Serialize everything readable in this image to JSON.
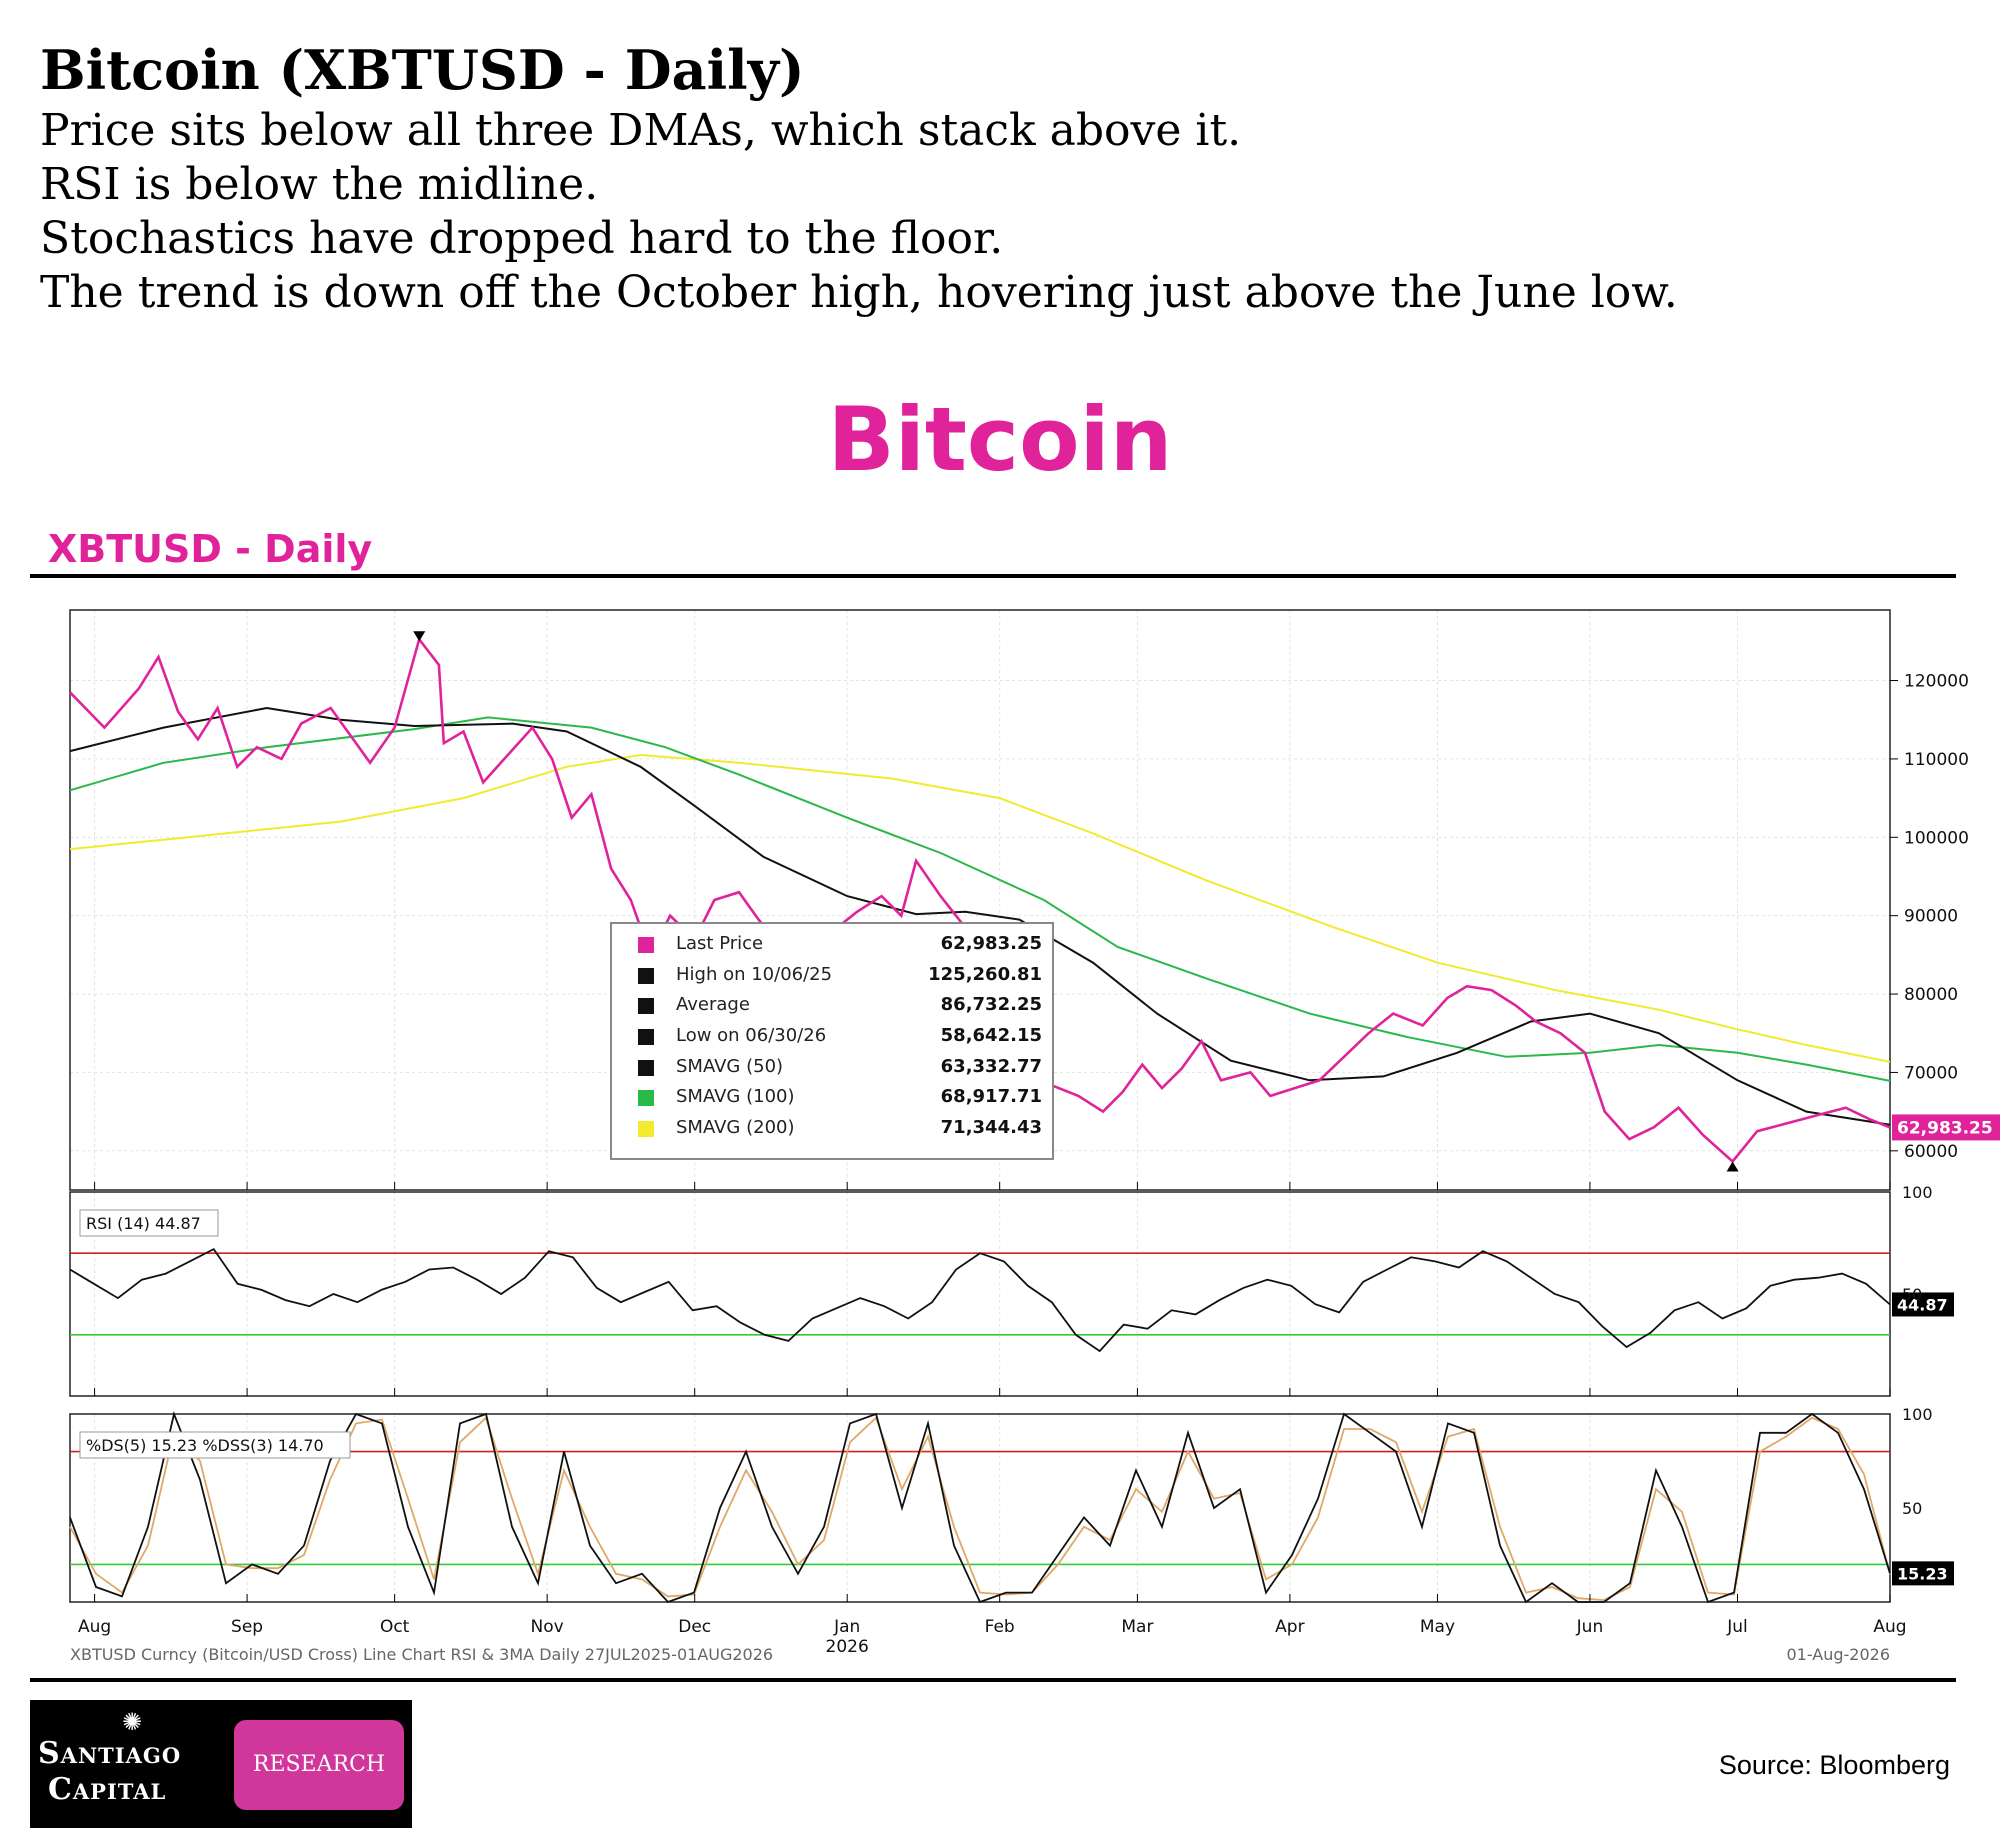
{
  "header": {
    "headline": "Bitcoin (XBTUSD - Daily)",
    "summary": [
      "Price sits below all three DMAs, which stack above it.",
      "RSI is below the midline.",
      "Stochastics have dropped hard to the floor.",
      "The trend is down off the October high, hovering just above the June low."
    ]
  },
  "big_title": "Bitcoin",
  "subtitle": "XBTUSD - Daily",
  "legend": [
    {
      "label": "Last Price",
      "value": "62,983.25",
      "color": "#e0239b"
    },
    {
      "label": "High on 10/06/25",
      "value": "125,260.81",
      "color": "#111111"
    },
    {
      "label": "Average",
      "value": "86,732.25",
      "color": "#111111"
    },
    {
      "label": "Low on 06/30/26",
      "value": "58,642.15",
      "color": "#111111"
    },
    {
      "label": "SMAVG (50)",
      "value": "63,332.77",
      "color": "#111111"
    },
    {
      "label": "SMAVG (100)",
      "value": "68,917.71",
      "color": "#2bb84a"
    },
    {
      "label": "SMAVG (200)",
      "value": "71,344.43",
      "color": "#f2ea2e"
    }
  ],
  "footer": {
    "chart_caption": "XBTUSD Curncy (Bitcoin/USD Cross) Line Chart RSI & 3MA Daily  27JUL2025-01AUG2026",
    "date_stamp": "01-Aug-2026",
    "logo_line1": "Santiago",
    "logo_line2": "Capital",
    "logo_badge": "RESEARCH",
    "source": "Source: Bloomberg"
  },
  "colors": {
    "accent": "#e0239b",
    "sma50": "#111111",
    "sma100": "#2bb84a",
    "sma200": "#f2ea2e",
    "overbought": "#cc2222",
    "oversold": "#33cc33",
    "stoch_signal": "#e0a868"
  },
  "chart_data": [
    {
      "type": "line",
      "title": "XBTUSD - Daily",
      "x_ticks": [
        "Aug",
        "Sep",
        "Oct",
        "Nov",
        "Dec",
        "Jan",
        "Feb",
        "Mar",
        "Apr",
        "May",
        "Jun",
        "Jul",
        "Aug"
      ],
      "x_tick_sub": {
        "Jan": "2026"
      },
      "x_range": [
        "2025-07-27",
        "2026-08-01"
      ],
      "y_ticks": [
        60000,
        70000,
        80000,
        90000,
        100000,
        110000,
        120000
      ],
      "ylim": [
        55000,
        129000
      ],
      "grid": true,
      "legend_position": "center",
      "last_price_label": "62,983.25",
      "markers": [
        {
          "x": "2025-10-06",
          "y": 125260.81,
          "kind": "high"
        },
        {
          "x": "2026-06-30",
          "y": 58642.15,
          "kind": "low"
        }
      ],
      "series": [
        {
          "name": "Last Price",
          "color": "#e0239b",
          "points": [
            [
              "2025-07-27",
              118500
            ],
            [
              "2025-08-03",
              114000
            ],
            [
              "2025-08-10",
              119000
            ],
            [
              "2025-08-14",
              123000
            ],
            [
              "2025-08-18",
              116000
            ],
            [
              "2025-08-22",
              112500
            ],
            [
              "2025-08-26",
              116500
            ],
            [
              "2025-08-30",
              109000
            ],
            [
              "2025-09-03",
              111500
            ],
            [
              "2025-09-08",
              110000
            ],
            [
              "2025-09-12",
              114500
            ],
            [
              "2025-09-18",
              116500
            ],
            [
              "2025-09-22",
              113000
            ],
            [
              "2025-09-26",
              109500
            ],
            [
              "2025-10-01",
              114000
            ],
            [
              "2025-10-06",
              125260
            ],
            [
              "2025-10-10",
              122000
            ],
            [
              "2025-10-11",
              112000
            ],
            [
              "2025-10-15",
              113500
            ],
            [
              "2025-10-19",
              107000
            ],
            [
              "2025-10-24",
              110500
            ],
            [
              "2025-10-29",
              114000
            ],
            [
              "2025-11-02",
              110000
            ],
            [
              "2025-11-06",
              102500
            ],
            [
              "2025-11-10",
              105500
            ],
            [
              "2025-11-14",
              96000
            ],
            [
              "2025-11-18",
              92000
            ],
            [
              "2025-11-22",
              85000
            ],
            [
              "2025-11-26",
              90000
            ],
            [
              "2025-12-01",
              87000
            ],
            [
              "2025-12-05",
              92000
            ],
            [
              "2025-12-10",
              93000
            ],
            [
              "2025-12-14",
              89500
            ],
            [
              "2025-12-18",
              86500
            ],
            [
              "2025-12-22",
              88000
            ],
            [
              "2025-12-28",
              87500
            ],
            [
              "2026-01-03",
              90500
            ],
            [
              "2026-01-08",
              92500
            ],
            [
              "2026-01-12",
              90000
            ],
            [
              "2026-01-15",
              97000
            ],
            [
              "2026-01-20",
              92500
            ],
            [
              "2026-01-25",
              88500
            ],
            [
              "2026-01-30",
              84000
            ],
            [
              "2026-02-03",
              78000
            ],
            [
              "2026-02-06",
              70000
            ],
            [
              "2026-02-11",
              68500
            ],
            [
              "2026-02-17",
              67000
            ],
            [
              "2026-02-22",
              65000
            ],
            [
              "2026-02-26",
              67500
            ],
            [
              "2026-03-02",
              71000
            ],
            [
              "2026-03-06",
              68000
            ],
            [
              "2026-03-10",
              70500
            ],
            [
              "2026-03-14",
              74000
            ],
            [
              "2026-03-18",
              69000
            ],
            [
              "2026-03-24",
              70000
            ],
            [
              "2026-03-28",
              67000
            ],
            [
              "2026-04-02",
              68000
            ],
            [
              "2026-04-07",
              69000
            ],
            [
              "2026-04-12",
              72000
            ],
            [
              "2026-04-17",
              75000
            ],
            [
              "2026-04-22",
              77500
            ],
            [
              "2026-04-28",
              76000
            ],
            [
              "2026-05-03",
              79500
            ],
            [
              "2026-05-07",
              81000
            ],
            [
              "2026-05-12",
              80500
            ],
            [
              "2026-05-17",
              78500
            ],
            [
              "2026-05-21",
              76500
            ],
            [
              "2026-05-26",
              75000
            ],
            [
              "2026-05-31",
              72500
            ],
            [
              "2026-06-04",
              65000
            ],
            [
              "2026-06-09",
              61500
            ],
            [
              "2026-06-14",
              63000
            ],
            [
              "2026-06-19",
              65500
            ],
            [
              "2026-06-24",
              62000
            ],
            [
              "2026-06-30",
              58642
            ],
            [
              "2026-07-05",
              62500
            ],
            [
              "2026-07-11",
              63500
            ],
            [
              "2026-07-17",
              64500
            ],
            [
              "2026-07-23",
              65500
            ],
            [
              "2026-07-28",
              64000
            ],
            [
              "2026-08-01",
              62983
            ]
          ]
        },
        {
          "name": "SMAVG (50)",
          "color": "#111111",
          "points": [
            [
              "2025-07-27",
              111000
            ],
            [
              "2025-08-15",
              114000
            ],
            [
              "2025-09-05",
              116500
            ],
            [
              "2025-09-20",
              115000
            ],
            [
              "2025-10-05",
              114200
            ],
            [
              "2025-10-25",
              114500
            ],
            [
              "2025-11-05",
              113500
            ],
            [
              "2025-11-20",
              109000
            ],
            [
              "2025-12-01",
              104000
            ],
            [
              "2025-12-15",
              97500
            ],
            [
              "2026-01-01",
              92500
            ],
            [
              "2026-01-15",
              90200
            ],
            [
              "2026-01-25",
              90500
            ],
            [
              "2026-02-05",
              89500
            ],
            [
              "2026-02-20",
              84000
            ],
            [
              "2026-03-05",
              77500
            ],
            [
              "2026-03-20",
              71500
            ],
            [
              "2026-04-05",
              69000
            ],
            [
              "2026-04-20",
              69500
            ],
            [
              "2026-05-05",
              72500
            ],
            [
              "2026-05-20",
              76500
            ],
            [
              "2026-06-01",
              77500
            ],
            [
              "2026-06-15",
              75000
            ],
            [
              "2026-07-01",
              69000
            ],
            [
              "2026-07-15",
              65000
            ],
            [
              "2026-08-01",
              63333
            ]
          ]
        },
        {
          "name": "SMAVG (100)",
          "color": "#2bb84a",
          "points": [
            [
              "2025-07-27",
              106000
            ],
            [
              "2025-08-15",
              109500
            ],
            [
              "2025-09-05",
              111500
            ],
            [
              "2025-10-05",
              113800
            ],
            [
              "2025-10-20",
              115300
            ],
            [
              "2025-11-10",
              114000
            ],
            [
              "2025-11-25",
              111500
            ],
            [
              "2025-12-10",
              108000
            ],
            [
              "2026-01-01",
              102500
            ],
            [
              "2026-01-20",
              98000
            ],
            [
              "2026-02-10",
              92000
            ],
            [
              "2026-02-25",
              86000
            ],
            [
              "2026-03-15",
              82000
            ],
            [
              "2026-04-05",
              77500
            ],
            [
              "2026-04-25",
              74500
            ],
            [
              "2026-05-15",
              72000
            ],
            [
              "2026-06-01",
              72500
            ],
            [
              "2026-06-15",
              73500
            ],
            [
              "2026-07-01",
              72500
            ],
            [
              "2026-07-15",
              71000
            ],
            [
              "2026-08-01",
              68918
            ]
          ]
        },
        {
          "name": "SMAVG (200)",
          "color": "#f2ea2e",
          "points": [
            [
              "2025-07-27",
              98500
            ],
            [
              "2025-08-20",
              100000
            ],
            [
              "2025-09-20",
              102000
            ],
            [
              "2025-10-15",
              105000
            ],
            [
              "2025-11-05",
              109000
            ],
            [
              "2025-11-20",
              110500
            ],
            [
              "2025-12-10",
              109500
            ],
            [
              "2026-01-10",
              107500
            ],
            [
              "2026-02-01",
              105000
            ],
            [
              "2026-02-20",
              100500
            ],
            [
              "2026-03-15",
              94500
            ],
            [
              "2026-04-10",
              88500
            ],
            [
              "2026-05-01",
              84000
            ],
            [
              "2026-05-25",
              80500
            ],
            [
              "2026-06-15",
              78000
            ],
            [
              "2026-07-01",
              75500
            ],
            [
              "2026-07-15",
              73500
            ],
            [
              "2026-08-01",
              71344
            ]
          ]
        }
      ]
    },
    {
      "type": "line",
      "title": "RSI (14)  44.87",
      "y_ticks": [
        50,
        100
      ],
      "ylim": [
        0,
        100
      ],
      "overbought": 70,
      "oversold": 30,
      "last_value_label": "44.87",
      "series": [
        {
          "name": "RSI (14)",
          "color": "#111111",
          "values": [
            62,
            55,
            48,
            57,
            60,
            66,
            72,
            55,
            52,
            47,
            44,
            50,
            46,
            52,
            56,
            62,
            63,
            57,
            50,
            58,
            71,
            68,
            53,
            46,
            51,
            56,
            42,
            44,
            36,
            30,
            27,
            38,
            43,
            48,
            44,
            38,
            46,
            62,
            70,
            66,
            54,
            46,
            30,
            22,
            35,
            33,
            42,
            40,
            47,
            53,
            57,
            54,
            45,
            41,
            56,
            62,
            68,
            66,
            63,
            71,
            66,
            58,
            50,
            46,
            34,
            24,
            31,
            42,
            46,
            38,
            43,
            54,
            57,
            58,
            60,
            55,
            44.87
          ]
        }
      ]
    },
    {
      "type": "line",
      "title": "%DS(5) 15.23  %DSS(3) 14.70",
      "y_ticks": [
        50,
        100
      ],
      "ylim": [
        0,
        100
      ],
      "overbought": 80,
      "oversold": 20,
      "last_value_label": "15.23",
      "series": [
        {
          "name": "%DS(5)",
          "color": "#111111",
          "values": [
            45,
            8,
            3,
            40,
            100,
            65,
            10,
            20,
            15,
            30,
            75,
            100,
            95,
            40,
            5,
            95,
            100,
            40,
            10,
            80,
            30,
            10,
            15,
            0,
            5,
            50,
            80,
            40,
            15,
            40,
            95,
            100,
            50,
            95,
            30,
            0,
            5,
            5,
            25,
            45,
            30,
            70,
            40,
            90,
            50,
            60,
            5,
            25,
            55,
            100,
            90,
            80,
            40,
            95,
            90,
            30,
            0,
            10,
            0,
            0,
            10,
            70,
            40,
            0,
            5,
            90,
            90,
            100,
            90,
            60,
            15.23
          ]
        },
        {
          "name": "%DSS(3)",
          "color": "#e0a868",
          "values": [
            40,
            15,
            5,
            30,
            90,
            75,
            20,
            18,
            18,
            25,
            65,
            95,
            97,
            55,
            12,
            85,
            98,
            55,
            15,
            70,
            40,
            15,
            12,
            3,
            4,
            40,
            70,
            48,
            20,
            33,
            85,
            98,
            60,
            88,
            40,
            5,
            4,
            5,
            20,
            40,
            33,
            60,
            48,
            80,
            55,
            58,
            12,
            20,
            45,
            92,
            92,
            85,
            48,
            88,
            92,
            40,
            5,
            8,
            2,
            1,
            8,
            60,
            48,
            5,
            4,
            80,
            88,
            98,
            92,
            68,
            14.7
          ]
        }
      ]
    }
  ]
}
